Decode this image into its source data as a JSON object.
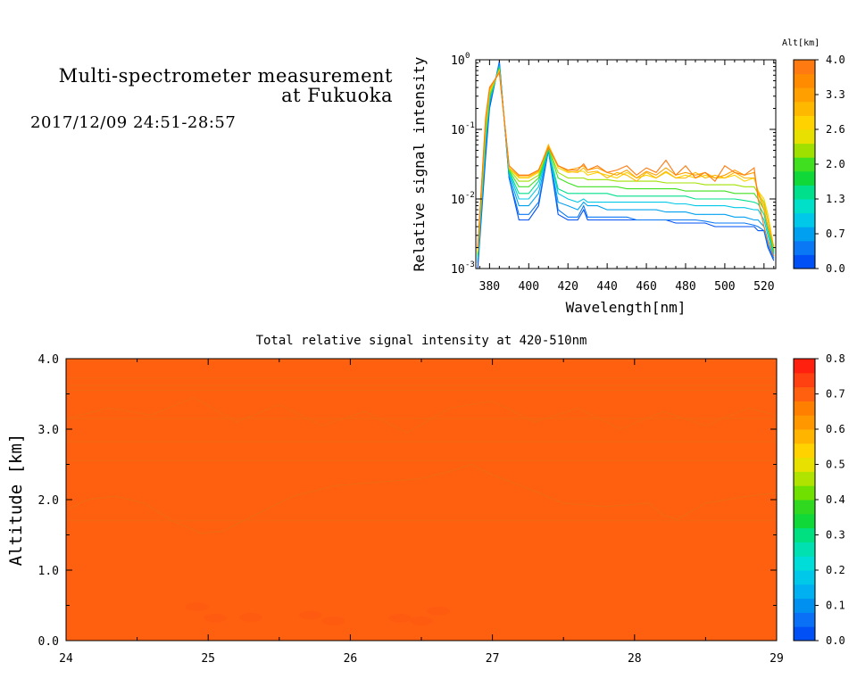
{
  "header": {
    "title_line1": "Multi-spectrometer measurement",
    "title_line2": "at Fukuoka",
    "subtitle": "2017/12/09 24:51-28:57"
  },
  "chart_data": [
    {
      "type": "line",
      "xlabel": "Wavelength[nm]",
      "ylabel": "Relative signal intensity",
      "xlim": [
        373,
        526
      ],
      "ylim": [
        0.001,
        1
      ],
      "yscale": "log",
      "xticks": [
        380,
        400,
        420,
        440,
        460,
        480,
        500,
        520
      ],
      "xtick_labels": [
        "380",
        "400",
        "420",
        "440",
        "460",
        "480",
        "500",
        "520"
      ],
      "yticks": [
        0.001,
        0.01,
        0.1,
        1
      ],
      "ytick_labels": [
        {
          "base": "10",
          "exp": "-3"
        },
        {
          "base": "10",
          "exp": "-2"
        },
        {
          "base": "10",
          "exp": "-1"
        },
        {
          "base": "10",
          "exp": "0"
        }
      ],
      "colorbar": {
        "title": "Alt[km]",
        "ticks": [
          "4.0",
          "3.3",
          "2.6",
          "2.0",
          "1.3",
          "0.7",
          "0.0"
        ],
        "min": 0,
        "max": 4,
        "colors": [
          "#0050f5",
          "#0a78f5",
          "#00a0f0",
          "#00c8e8",
          "#00e0c8",
          "#00e08c",
          "#10d838",
          "#40e020",
          "#a0e000",
          "#e8e000",
          "#ffd200",
          "#ffb800",
          "#ffa000",
          "#ff8c00",
          "#ff7a10"
        ]
      },
      "x": [
        374,
        378,
        380,
        385,
        390,
        395,
        400,
        405,
        410,
        415,
        420,
        425,
        428,
        430,
        435,
        440,
        445,
        450,
        455,
        460,
        465,
        470,
        475,
        480,
        485,
        490,
        495,
        500,
        505,
        510,
        515,
        517,
        520,
        522,
        525
      ],
      "series": [
        {
          "altitude": 0.0,
          "color": "#0050f5",
          "values": [
            0.001,
            0.04,
            0.2,
            0.95,
            0.02,
            0.005,
            0.005,
            0.008,
            0.05,
            0.006,
            0.005,
            0.005,
            0.007,
            0.005,
            0.005,
            0.005,
            0.005,
            0.005,
            0.005,
            0.005,
            0.005,
            0.005,
            0.0045,
            0.0045,
            0.0045,
            0.0045,
            0.004,
            0.004,
            0.004,
            0.004,
            0.004,
            0.0035,
            0.0035,
            0.002,
            0.0013
          ]
        },
        {
          "altitude": 0.4,
          "color": "#0a78f5",
          "values": [
            0.0012,
            0.05,
            0.22,
            0.9,
            0.02,
            0.006,
            0.006,
            0.009,
            0.05,
            0.007,
            0.0055,
            0.0055,
            0.008,
            0.0055,
            0.0055,
            0.0055,
            0.0055,
            0.0055,
            0.005,
            0.005,
            0.005,
            0.005,
            0.005,
            0.005,
            0.005,
            0.0048,
            0.0045,
            0.0045,
            0.0045,
            0.0045,
            0.0042,
            0.004,
            0.0035,
            0.0022,
            0.0014
          ]
        },
        {
          "altitude": 0.9,
          "color": "#00a0f0",
          "values": [
            0.0013,
            0.06,
            0.25,
            0.85,
            0.022,
            0.008,
            0.008,
            0.012,
            0.05,
            0.009,
            0.008,
            0.007,
            0.009,
            0.008,
            0.008,
            0.007,
            0.007,
            0.007,
            0.007,
            0.007,
            0.007,
            0.0065,
            0.0065,
            0.0065,
            0.006,
            0.006,
            0.006,
            0.006,
            0.0055,
            0.0055,
            0.005,
            0.005,
            0.004,
            0.0025,
            0.0015
          ]
        },
        {
          "altitude": 1.3,
          "color": "#00c8e8",
          "values": [
            0.0014,
            0.07,
            0.26,
            0.8,
            0.024,
            0.01,
            0.01,
            0.015,
            0.052,
            0.012,
            0.01,
            0.009,
            0.01,
            0.009,
            0.009,
            0.009,
            0.009,
            0.009,
            0.009,
            0.009,
            0.009,
            0.009,
            0.0085,
            0.0085,
            0.008,
            0.008,
            0.008,
            0.008,
            0.0075,
            0.0075,
            0.007,
            0.007,
            0.005,
            0.003,
            0.0016
          ]
        },
        {
          "altitude": 1.8,
          "color": "#00e08c",
          "values": [
            0.0015,
            0.08,
            0.28,
            0.78,
            0.025,
            0.012,
            0.012,
            0.018,
            0.052,
            0.014,
            0.012,
            0.012,
            0.012,
            0.012,
            0.012,
            0.012,
            0.011,
            0.011,
            0.011,
            0.011,
            0.011,
            0.011,
            0.011,
            0.011,
            0.01,
            0.01,
            0.01,
            0.01,
            0.01,
            0.0095,
            0.009,
            0.0085,
            0.006,
            0.0035,
            0.0017
          ]
        },
        {
          "altitude": 2.2,
          "color": "#40e020",
          "values": [
            0.0016,
            0.09,
            0.3,
            0.75,
            0.026,
            0.015,
            0.015,
            0.02,
            0.055,
            0.02,
            0.017,
            0.015,
            0.015,
            0.015,
            0.015,
            0.015,
            0.015,
            0.014,
            0.014,
            0.014,
            0.014,
            0.014,
            0.014,
            0.013,
            0.013,
            0.013,
            0.013,
            0.013,
            0.012,
            0.012,
            0.012,
            0.01,
            0.007,
            0.004,
            0.0018
          ]
        },
        {
          "altitude": 2.6,
          "color": "#a0e000",
          "values": [
            0.0017,
            0.1,
            0.32,
            0.72,
            0.027,
            0.018,
            0.018,
            0.022,
            0.055,
            0.024,
            0.02,
            0.02,
            0.02,
            0.019,
            0.019,
            0.019,
            0.018,
            0.018,
            0.018,
            0.018,
            0.018,
            0.017,
            0.017,
            0.017,
            0.017,
            0.016,
            0.016,
            0.016,
            0.016,
            0.015,
            0.015,
            0.012,
            0.009,
            0.005,
            0.0019
          ]
        },
        {
          "altitude": 3.0,
          "color": "#ffd200",
          "values": [
            0.0018,
            0.12,
            0.35,
            0.7,
            0.028,
            0.02,
            0.02,
            0.024,
            0.06,
            0.028,
            0.024,
            0.025,
            0.025,
            0.022,
            0.024,
            0.022,
            0.02,
            0.024,
            0.02,
            0.022,
            0.02,
            0.024,
            0.02,
            0.022,
            0.02,
            0.022,
            0.02,
            0.02,
            0.022,
            0.018,
            0.02,
            0.013,
            0.01,
            0.006,
            0.002
          ]
        },
        {
          "altitude": 3.3,
          "color": "#ffb800",
          "values": [
            0.0019,
            0.13,
            0.37,
            0.68,
            0.028,
            0.021,
            0.021,
            0.025,
            0.06,
            0.03,
            0.025,
            0.024,
            0.028,
            0.024,
            0.025,
            0.02,
            0.024,
            0.022,
            0.018,
            0.024,
            0.02,
            0.025,
            0.02,
            0.02,
            0.024,
            0.02,
            0.022,
            0.02,
            0.024,
            0.02,
            0.02,
            0.013,
            0.008,
            0.005,
            0.002
          ]
        },
        {
          "altitude": 3.6,
          "color": "#ffa000",
          "values": [
            0.002,
            0.14,
            0.38,
            0.66,
            0.03,
            0.022,
            0.022,
            0.026,
            0.055,
            0.03,
            0.026,
            0.028,
            0.03,
            0.026,
            0.028,
            0.024,
            0.022,
            0.026,
            0.02,
            0.025,
            0.022,
            0.028,
            0.022,
            0.024,
            0.022,
            0.024,
            0.02,
            0.022,
            0.026,
            0.022,
            0.024,
            0.012,
            0.007,
            0.004,
            0.0021
          ]
        },
        {
          "altitude": 4.0,
          "color": "#ff7a10",
          "values": [
            0.002,
            0.15,
            0.4,
            0.65,
            0.03,
            0.022,
            0.022,
            0.026,
            0.055,
            0.03,
            0.026,
            0.026,
            0.032,
            0.026,
            0.03,
            0.024,
            0.026,
            0.03,
            0.022,
            0.028,
            0.024,
            0.036,
            0.022,
            0.03,
            0.02,
            0.024,
            0.018,
            0.03,
            0.024,
            0.022,
            0.028,
            0.01,
            0.004,
            0.0025,
            0.0015
          ]
        }
      ]
    },
    {
      "type": "heatmap",
      "title": "Total relative signal intensity at 420-510nm",
      "xlabel": "",
      "ylabel": "Altitude [km]",
      "xlim": [
        24,
        29
      ],
      "ylim": [
        0,
        4
      ],
      "xticks": [
        24,
        25,
        26,
        27,
        28,
        29
      ],
      "xtick_labels": [
        "24",
        "25",
        "26",
        "27",
        "28",
        "29"
      ],
      "yticks": [
        0,
        1,
        2,
        3,
        4
      ],
      "ytick_labels": [
        "0.0",
        "1.0",
        "2.0",
        "3.0",
        "4.0"
      ],
      "dominant_value": 0.68,
      "colorbar": {
        "ticks": [
          "0.8",
          "0.7",
          "0.6",
          "0.5",
          "0.4",
          "0.3",
          "0.2",
          "0.1",
          "0.0"
        ],
        "min": 0,
        "max": 0.8,
        "colors": [
          "#0050f5",
          "#0a70f5",
          "#0090f0",
          "#00b0f0",
          "#00c8e8",
          "#00dcd8",
          "#00e0b0",
          "#00e080",
          "#10d838",
          "#30d820",
          "#70e000",
          "#b0e400",
          "#e8e000",
          "#ffd200",
          "#ffb400",
          "#ff9800",
          "#ff8000",
          "#ff6010",
          "#ff4010",
          "#ff2010"
        ]
      },
      "high_patches": [
        {
          "t": 24.92,
          "alt": 0.48
        },
        {
          "t": 25.05,
          "alt": 0.32
        },
        {
          "t": 25.3,
          "alt": 0.33
        },
        {
          "t": 25.72,
          "alt": 0.36
        },
        {
          "t": 25.88,
          "alt": 0.28
        },
        {
          "t": 26.35,
          "alt": 0.32
        },
        {
          "t": 26.5,
          "alt": 0.28
        },
        {
          "t": 26.62,
          "alt": 0.42
        }
      ],
      "level_lines": [
        1.7,
        2.55,
        2.82,
        3.15,
        3.55,
        3.62,
        3.72,
        3.97
      ]
    }
  ]
}
